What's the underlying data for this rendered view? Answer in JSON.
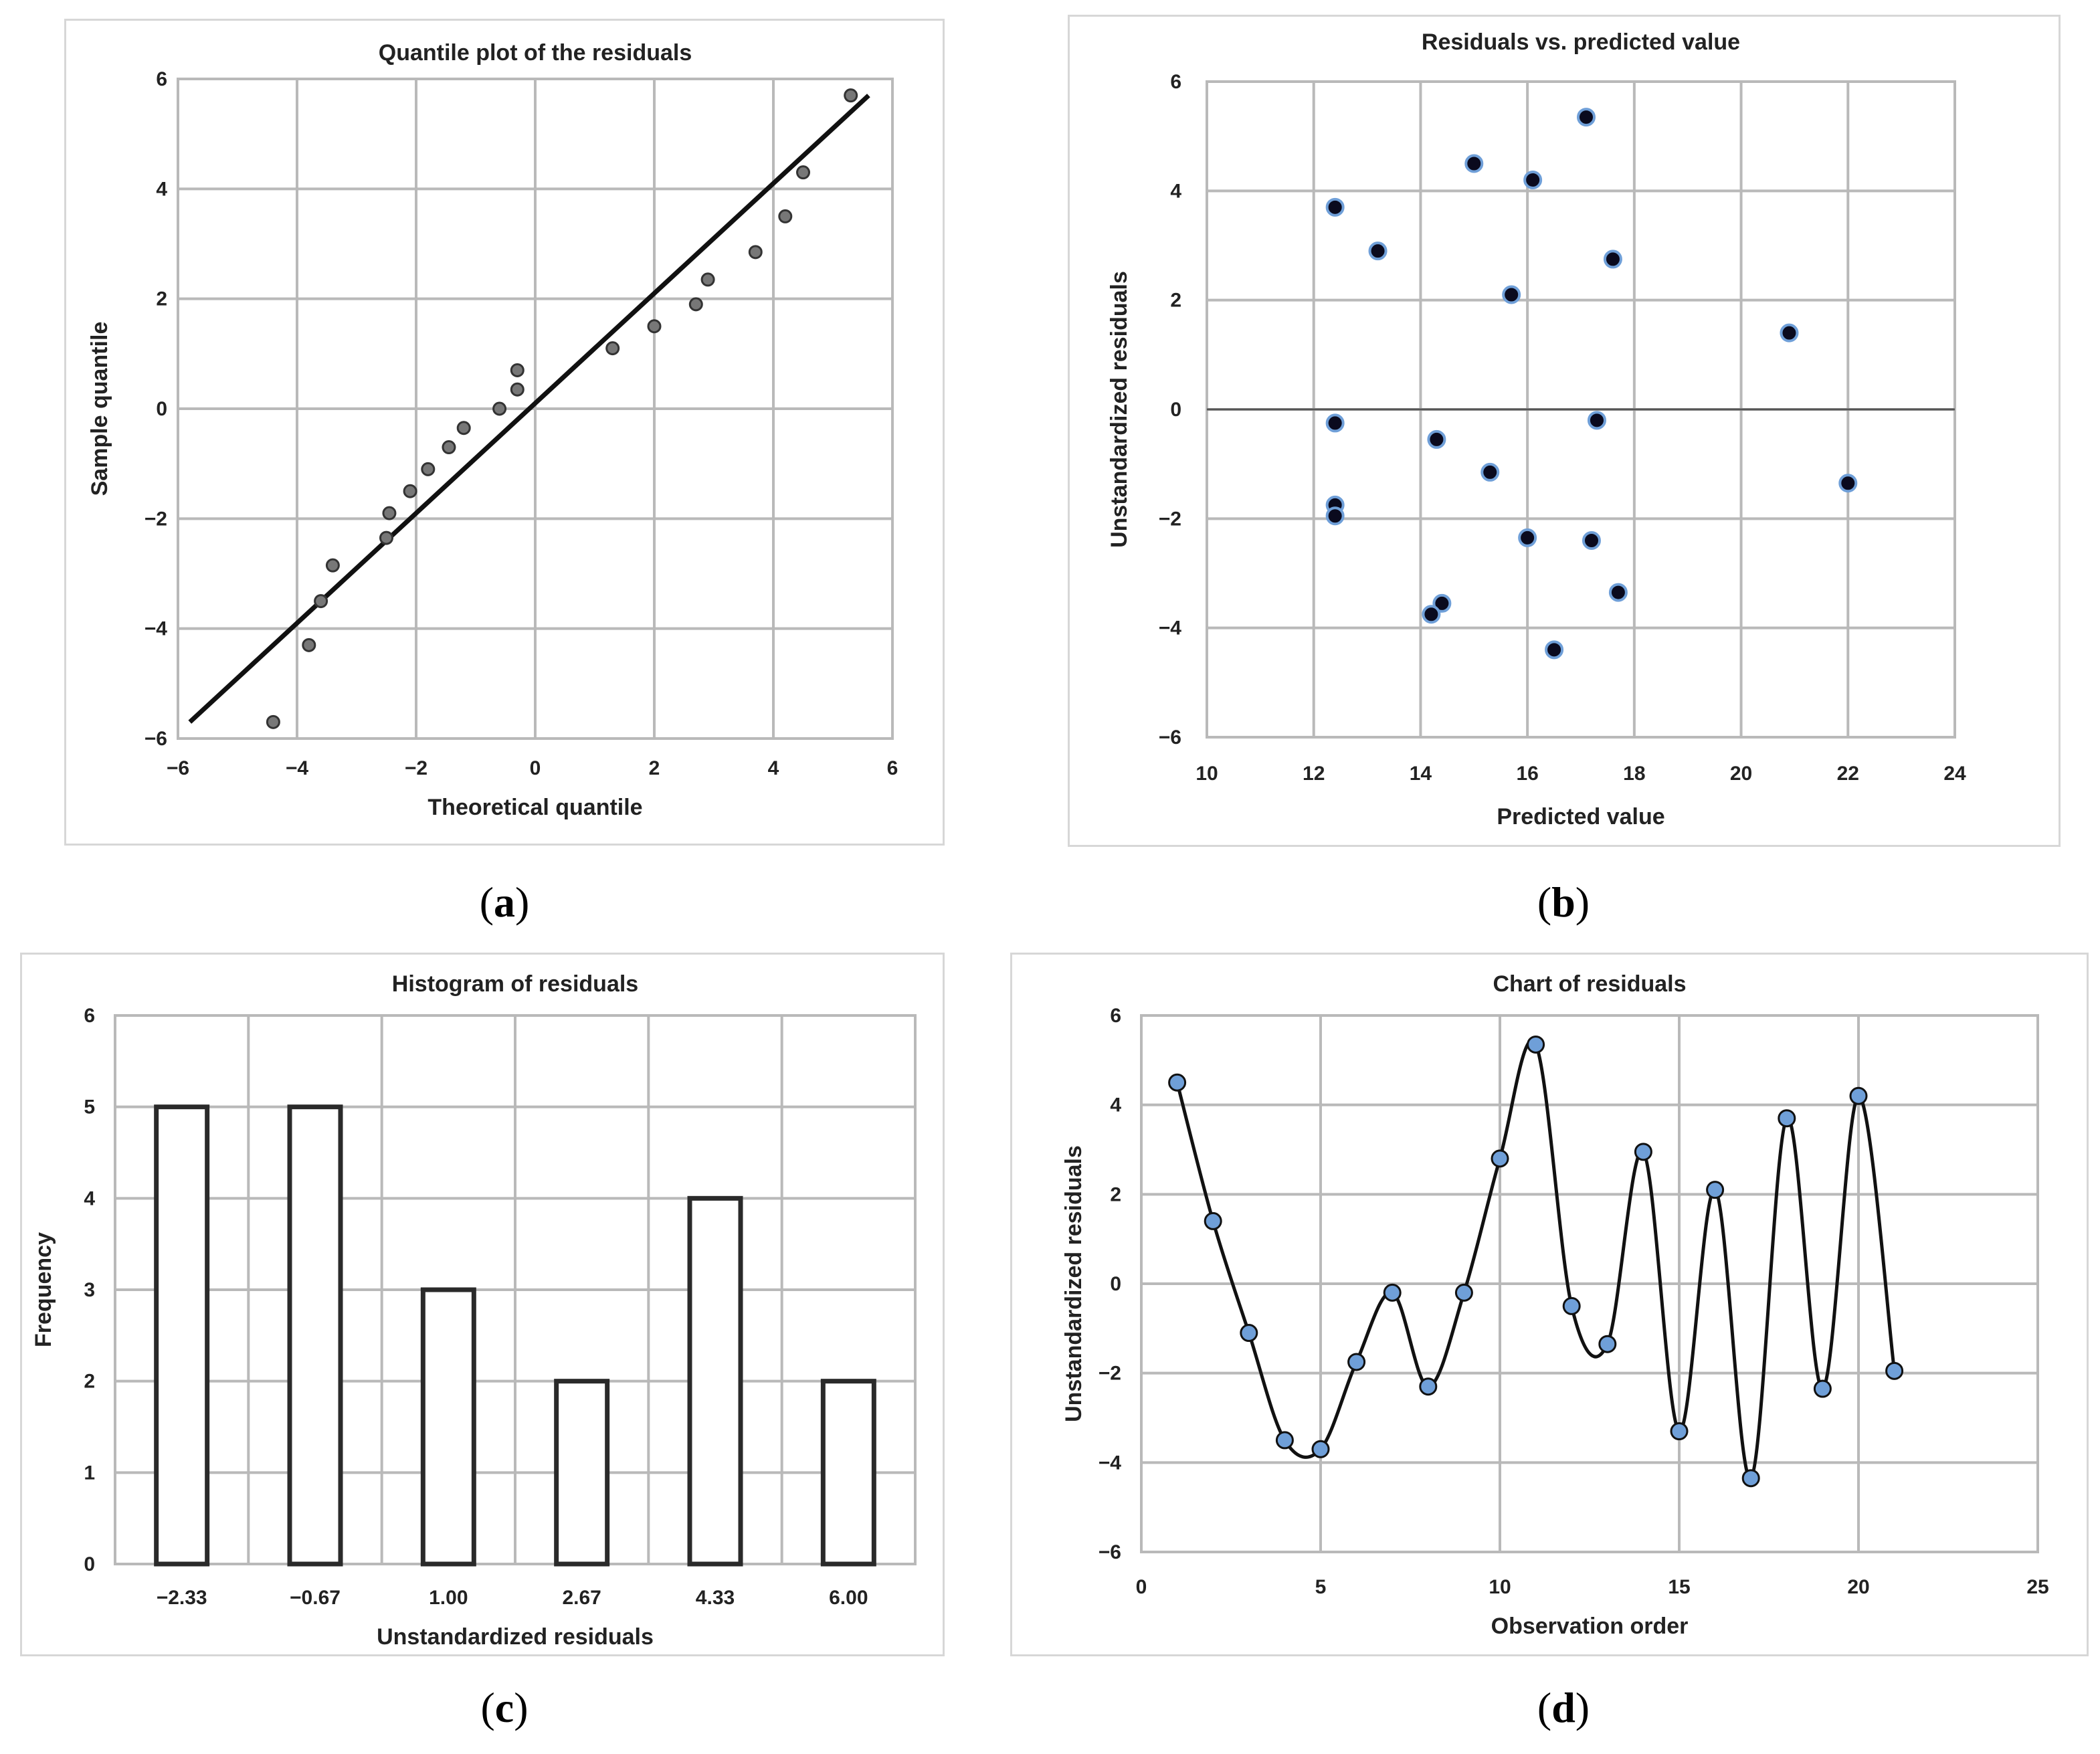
{
  "chart_data": [
    {
      "id": "a",
      "type": "scatter",
      "title": "Quantile plot of the residuals",
      "xlabel": "Theoretical quantile",
      "ylabel": "Sample quantile",
      "xlim": [
        -6,
        6
      ],
      "ylim": [
        -6,
        6
      ],
      "xticks": [
        -6,
        -4,
        -2,
        0,
        2,
        4,
        6
      ],
      "yticks": [
        -6,
        -4,
        -2,
        0,
        2,
        4,
        6
      ],
      "xtick_labels": [
        "−6",
        "−4",
        "−2",
        "0",
        "2",
        "4",
        "6"
      ],
      "ytick_labels": [
        "−6",
        "−4",
        "−2",
        "0",
        "2",
        "4",
        "6"
      ],
      "grid": true,
      "marker_color": "#777777",
      "points": [
        {
          "x": -4.4,
          "y": -5.7
        },
        {
          "x": -3.8,
          "y": -4.3
        },
        {
          "x": -3.6,
          "y": -3.5
        },
        {
          "x": -3.4,
          "y": -2.85
        },
        {
          "x": -2.5,
          "y": -2.35
        },
        {
          "x": -2.45,
          "y": -1.9
        },
        {
          "x": -2.1,
          "y": -1.5
        },
        {
          "x": -1.8,
          "y": -1.1
        },
        {
          "x": -1.45,
          "y": -0.7
        },
        {
          "x": -1.2,
          "y": -0.35
        },
        {
          "x": -0.6,
          "y": 0.0
        },
        {
          "x": -0.3,
          "y": 0.35
        },
        {
          "x": -0.3,
          "y": 0.7
        },
        {
          "x": 1.3,
          "y": 1.1
        },
        {
          "x": 2.0,
          "y": 1.5
        },
        {
          "x": 2.7,
          "y": 1.9
        },
        {
          "x": 2.9,
          "y": 2.35
        },
        {
          "x": 3.7,
          "y": 2.85
        },
        {
          "x": 4.2,
          "y": 3.5
        },
        {
          "x": 4.5,
          "y": 4.3
        },
        {
          "x": 5.3,
          "y": 5.7
        }
      ],
      "reference_line": {
        "x1": -5.8,
        "y1": -5.7,
        "x2": 5.6,
        "y2": 5.7
      },
      "caption": "a"
    },
    {
      "id": "b",
      "type": "scatter",
      "title": "Residuals vs. predicted value",
      "xlabel": "Predicted value",
      "ylabel": "Unstandardized residuals",
      "xlim": [
        10,
        24
      ],
      "ylim": [
        -6,
        6
      ],
      "xticks": [
        10,
        12,
        14,
        16,
        18,
        20,
        22,
        24
      ],
      "yticks": [
        -6,
        -4,
        -2,
        0,
        2,
        4,
        6
      ],
      "xtick_labels": [
        "10",
        "12",
        "14",
        "16",
        "18",
        "20",
        "22",
        "24"
      ],
      "ytick_labels": [
        "−6",
        "−4",
        "−2",
        "0",
        "2",
        "4",
        "6"
      ],
      "grid": true,
      "marker_color": "#0a0a1e",
      "marker_edge": "#6f9fd8",
      "points": [
        {
          "x": 12.4,
          "y": 3.7
        },
        {
          "x": 13.2,
          "y": 2.9
        },
        {
          "x": 15.0,
          "y": 4.5
        },
        {
          "x": 15.7,
          "y": 2.1
        },
        {
          "x": 16.1,
          "y": 4.2
        },
        {
          "x": 17.1,
          "y": 5.35
        },
        {
          "x": 17.6,
          "y": 2.75
        },
        {
          "x": 20.9,
          "y": 1.4
        },
        {
          "x": 12.4,
          "y": -0.25
        },
        {
          "x": 14.3,
          "y": -0.55
        },
        {
          "x": 17.3,
          "y": -0.2
        },
        {
          "x": 15.3,
          "y": -1.15
        },
        {
          "x": 12.4,
          "y": -1.75
        },
        {
          "x": 12.4,
          "y": -1.95
        },
        {
          "x": 16.0,
          "y": -2.35
        },
        {
          "x": 17.2,
          "y": -2.4
        },
        {
          "x": 22.0,
          "y": -1.35
        },
        {
          "x": 17.7,
          "y": -3.35
        },
        {
          "x": 14.4,
          "y": -3.55
        },
        {
          "x": 14.2,
          "y": -3.75
        },
        {
          "x": 16.5,
          "y": -4.4
        }
      ],
      "caption": "b"
    },
    {
      "id": "c",
      "type": "bar",
      "title": "Histogram  of residuals",
      "xlabel": "Unstandardized  residuals",
      "ylabel": "Frequency",
      "categories": [
        "−2.33",
        "−0.67",
        "1.00",
        "2.67",
        "4.33",
        "6.00"
      ],
      "values": [
        5,
        5,
        3,
        2,
        4,
        2
      ],
      "ylim": [
        0,
        6
      ],
      "yticks": [
        0,
        1,
        2,
        3,
        4,
        5,
        6
      ],
      "ytick_labels": [
        "0",
        "1",
        "2",
        "3",
        "4",
        "5",
        "6"
      ],
      "grid": true,
      "caption": "c"
    },
    {
      "id": "d",
      "type": "line",
      "title": "Chart of residuals",
      "xlabel": "Observation order",
      "ylabel": "Unstandardized residuals",
      "xlim": [
        0,
        25
      ],
      "ylim": [
        -6,
        6
      ],
      "xticks": [
        0,
        5,
        10,
        15,
        20,
        25
      ],
      "yticks": [
        -6,
        -4,
        -2,
        0,
        2,
        4,
        6
      ],
      "xtick_labels": [
        "0",
        "5",
        "10",
        "15",
        "20",
        "25"
      ],
      "ytick_labels": [
        "−6",
        "−4",
        "−2",
        "0",
        "2",
        "4",
        "6"
      ],
      "grid": true,
      "marker_color": "#6f9fd8",
      "x": [
        1,
        2,
        3,
        4,
        5,
        6,
        7,
        8,
        9,
        10,
        11,
        12,
        13,
        14,
        15,
        16,
        17,
        18,
        19,
        20,
        21
      ],
      "y": [
        4.5,
        1.4,
        -1.1,
        -3.5,
        -3.7,
        -1.75,
        -0.2,
        -2.3,
        -0.2,
        2.8,
        5.35,
        -0.5,
        -1.35,
        2.95,
        -3.3,
        2.1,
        -4.35,
        3.7,
        -2.35,
        4.2,
        -1.95
      ],
      "caption": "d"
    }
  ]
}
